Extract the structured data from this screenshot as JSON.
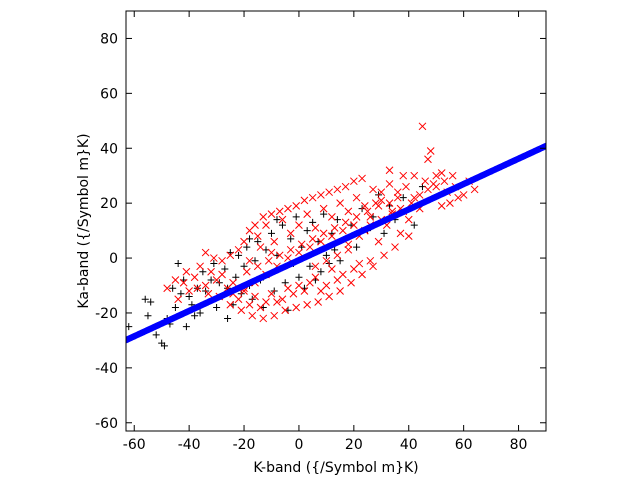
{
  "chart_data": {
    "type": "scatter",
    "title": "",
    "xlabel": "K-band ({/Symbol m}K)",
    "ylabel": "Ka-band ({/Symbol m}K)",
    "xlim": [
      -63,
      90
    ],
    "ylim": [
      -63,
      90
    ],
    "xticks": [
      -60,
      -40,
      -20,
      0,
      20,
      40,
      60,
      80
    ],
    "yticks": [
      -60,
      -40,
      -20,
      0,
      20,
      40,
      60,
      80
    ],
    "grid": false,
    "legend": "none",
    "series": [
      {
        "marker": "plus",
        "color": "#000000",
        "points": [
          [
            -62,
            -25
          ],
          [
            -56,
            -15
          ],
          [
            -55,
            -21
          ],
          [
            -54,
            -16
          ],
          [
            -52,
            -28
          ],
          [
            -50,
            -31
          ],
          [
            -49,
            -32
          ],
          [
            -48,
            -22
          ],
          [
            -47,
            -24
          ],
          [
            -45,
            -18
          ],
          [
            -43,
            -13
          ],
          [
            -42,
            -8
          ],
          [
            -40,
            -14
          ],
          [
            -39,
            -17
          ],
          [
            -38,
            -21
          ],
          [
            -37,
            -11
          ],
          [
            -36,
            -20
          ],
          [
            -35,
            -5
          ],
          [
            -34,
            -12
          ],
          [
            -33,
            -16
          ],
          [
            -32,
            -8
          ],
          [
            -31,
            -2
          ],
          [
            -30,
            -18
          ],
          [
            -29,
            -9
          ],
          [
            -28,
            -14
          ],
          [
            -27,
            -4
          ],
          [
            -26,
            -11
          ],
          [
            -25,
            2
          ],
          [
            -24,
            -17
          ],
          [
            -23,
            -7
          ],
          [
            -22,
            1
          ],
          [
            -21,
            -13
          ],
          [
            -20,
            -3
          ],
          [
            -19,
            4
          ],
          [
            -18,
            -10
          ],
          [
            -17,
            -15
          ],
          [
            -16,
            -1
          ],
          [
            -15,
            6
          ],
          [
            -14,
            -8
          ],
          [
            -13,
            -18
          ],
          [
            -12,
            3
          ],
          [
            -11,
            -6
          ],
          [
            -10,
            9
          ],
          [
            -9,
            -12
          ],
          [
            -8,
            1
          ],
          [
            -7,
            -4
          ],
          [
            -6,
            12
          ],
          [
            -5,
            -9
          ],
          [
            -4,
            -19
          ],
          [
            -3,
            7
          ],
          [
            -2,
            -2
          ],
          [
            -1,
            15
          ],
          [
            0,
            -7
          ],
          [
            1,
            4
          ],
          [
            2,
            -11
          ],
          [
            3,
            10
          ],
          [
            4,
            -3
          ],
          [
            5,
            13
          ],
          [
            6,
            -8
          ],
          [
            7,
            6
          ],
          [
            8,
            -5
          ],
          [
            9,
            16
          ],
          [
            10,
            1
          ],
          [
            11,
            -2
          ],
          [
            12,
            9
          ],
          [
            13,
            3
          ],
          [
            14,
            14
          ],
          [
            15,
            -1
          ],
          [
            17,
            7
          ],
          [
            19,
            12
          ],
          [
            21,
            4
          ],
          [
            23,
            18
          ],
          [
            25,
            10
          ],
          [
            27,
            15
          ],
          [
            29,
            23
          ],
          [
            31,
            9
          ],
          [
            33,
            19
          ],
          [
            35,
            14
          ],
          [
            38,
            22
          ],
          [
            42,
            12
          ],
          [
            45,
            26
          ],
          [
            -44,
            -2
          ],
          [
            -41,
            -25
          ],
          [
            -46,
            -11
          ],
          [
            -26,
            -22
          ],
          [
            -18,
            7
          ],
          [
            -8,
            14
          ]
        ]
      },
      {
        "marker": "x",
        "color": "#ff0000",
        "points": [
          [
            45,
            48
          ],
          [
            47,
            36
          ],
          [
            42,
            30
          ],
          [
            48,
            39
          ],
          [
            33,
            32
          ],
          [
            38,
            30
          ],
          [
            50,
            30
          ],
          [
            54,
            24
          ],
          [
            52,
            19
          ],
          [
            56,
            30
          ],
          [
            64,
            25
          ],
          [
            62,
            28
          ],
          [
            40,
            14
          ],
          [
            44,
            18
          ],
          [
            36,
            22
          ],
          [
            30,
            24
          ],
          [
            28,
            20
          ],
          [
            34,
            17
          ],
          [
            26,
            15
          ],
          [
            32,
            12
          ],
          [
            24,
            10
          ],
          [
            29,
            6
          ],
          [
            22,
            -2
          ],
          [
            26,
            -1
          ],
          [
            20,
            -4
          ],
          [
            18,
            3
          ],
          [
            16,
            -6
          ],
          [
            14,
            -8
          ],
          [
            12,
            -4
          ],
          [
            10,
            -10
          ],
          [
            8,
            -12
          ],
          [
            6,
            -7
          ],
          [
            4,
            -9
          ],
          [
            2,
            -12
          ],
          [
            0,
            -10
          ],
          [
            -2,
            -13
          ],
          [
            -4,
            -11
          ],
          [
            -6,
            -15
          ],
          [
            -8,
            -16
          ],
          [
            -10,
            -13
          ],
          [
            -12,
            -16
          ],
          [
            -14,
            -18
          ],
          [
            -16,
            -14
          ],
          [
            -18,
            -17
          ],
          [
            -20,
            -12
          ],
          [
            -22,
            -15
          ],
          [
            -24,
            -9
          ],
          [
            -26,
            -11
          ],
          [
            -28,
            -6
          ],
          [
            -30,
            -8
          ],
          [
            -32,
            -5
          ],
          [
            -34,
            -10
          ],
          [
            -36,
            -3
          ],
          [
            -38,
            -7
          ],
          [
            -40,
            -12
          ],
          [
            -42,
            -9
          ],
          [
            -44,
            -15
          ],
          [
            -20,
            6
          ],
          [
            -18,
            10
          ],
          [
            -15,
            8
          ],
          [
            -12,
            12
          ],
          [
            -9,
            6
          ],
          [
            -6,
            14
          ],
          [
            -3,
            9
          ],
          [
            0,
            12
          ],
          [
            3,
            16
          ],
          [
            6,
            11
          ],
          [
            9,
            18
          ],
          [
            12,
            15
          ],
          [
            15,
            20
          ],
          [
            18,
            17
          ],
          [
            21,
            22
          ],
          [
            24,
            19
          ],
          [
            27,
            25
          ],
          [
            30,
            21
          ],
          [
            33,
            27
          ],
          [
            36,
            24
          ],
          [
            39,
            26
          ],
          [
            42,
            22
          ],
          [
            46,
            28
          ],
          [
            49,
            27
          ],
          [
            52,
            31
          ],
          [
            57,
            26
          ],
          [
            60,
            23
          ],
          [
            37,
            9
          ],
          [
            40,
            8
          ],
          [
            35,
            4
          ],
          [
            31,
            1
          ],
          [
            27,
            -3
          ],
          [
            23,
            -6
          ],
          [
            19,
            -9
          ],
          [
            15,
            -12
          ],
          [
            11,
            -14
          ],
          [
            7,
            -16
          ],
          [
            3,
            -17
          ],
          [
            -1,
            -18
          ],
          [
            -5,
            -19
          ],
          [
            -9,
            -21
          ],
          [
            -13,
            -22
          ],
          [
            -17,
            -21
          ],
          [
            -21,
            -19
          ],
          [
            -25,
            -17
          ],
          [
            -29,
            -14
          ],
          [
            -33,
            -13
          ],
          [
            -37,
            -11
          ],
          [
            -41,
            -5
          ],
          [
            -45,
            -8
          ],
          [
            -48,
            -11
          ],
          [
            -22,
            3
          ],
          [
            -25,
            1
          ],
          [
            -28,
            -1
          ],
          [
            -31,
            0
          ],
          [
            -34,
            2
          ],
          [
            -16,
            12
          ],
          [
            -13,
            15
          ],
          [
            -10,
            16
          ],
          [
            -7,
            17
          ],
          [
            -4,
            18
          ],
          [
            -1,
            19
          ],
          [
            2,
            21
          ],
          [
            5,
            22
          ],
          [
            8,
            23
          ],
          [
            11,
            24
          ],
          [
            14,
            25
          ],
          [
            17,
            26
          ],
          [
            20,
            28
          ],
          [
            23,
            29
          ],
          [
            -19,
            -5
          ],
          [
            -15,
            -3
          ],
          [
            -11,
            -1
          ],
          [
            -7,
            1
          ],
          [
            -3,
            3
          ],
          [
            1,
            5
          ],
          [
            5,
            7
          ],
          [
            9,
            9
          ],
          [
            13,
            11
          ],
          [
            17,
            13
          ],
          [
            21,
            15
          ],
          [
            25,
            17
          ],
          [
            29,
            19
          ],
          [
            33,
            20
          ],
          [
            37,
            18
          ],
          [
            41,
            20
          ],
          [
            44,
            23
          ],
          [
            47,
            25
          ],
          [
            50,
            26
          ],
          [
            53,
            28
          ],
          [
            -8,
            -3
          ],
          [
            -4,
            0
          ],
          [
            0,
            2
          ],
          [
            4,
            4
          ],
          [
            8,
            6
          ],
          [
            12,
            8
          ],
          [
            16,
            10
          ],
          [
            20,
            12
          ],
          [
            -12,
            -6
          ],
          [
            -16,
            -9
          ],
          [
            -20,
            -11
          ],
          [
            -24,
            -13
          ],
          [
            -10,
            2
          ],
          [
            -14,
            4
          ],
          [
            -18,
            -1
          ],
          [
            6,
            -3
          ],
          [
            10,
            -1
          ],
          [
            14,
            1
          ],
          [
            18,
            5
          ],
          [
            22,
            8
          ],
          [
            26,
            12
          ],
          [
            30,
            14
          ],
          [
            34,
            16
          ],
          [
            38,
            17
          ],
          [
            55,
            20
          ],
          [
            58,
            22
          ]
        ]
      },
      {
        "marker": "circle",
        "color": "#0000ff",
        "fit": {
          "x_from": -63,
          "x_to": 90,
          "slope": 0.4622,
          "intercept": -0.76
        }
      }
    ]
  }
}
